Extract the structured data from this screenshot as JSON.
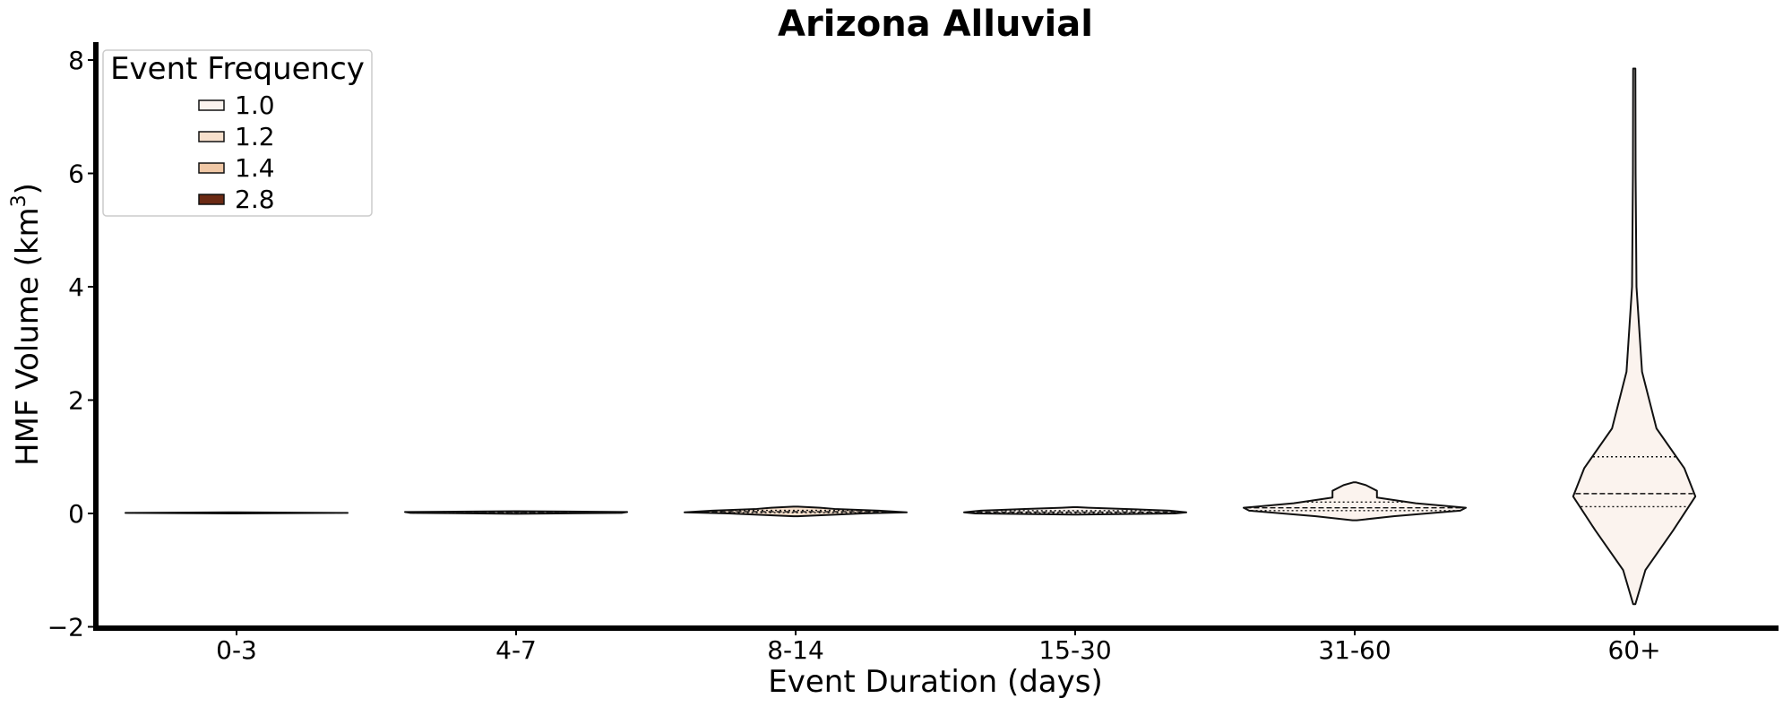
{
  "chart_data": {
    "type": "violin",
    "title": "Arizona Alluvial",
    "xlabel": "Event Duration (days)",
    "ylabel_main": "HMF Volume (km",
    "ylabel_sup": "3",
    "ylabel_close": ")",
    "ylim": [
      -2,
      8.3
    ],
    "yticks": [
      -2,
      0,
      2,
      4,
      6,
      8
    ],
    "ytick_labels": [
      "−2",
      "0",
      "2",
      "4",
      "6",
      "8"
    ],
    "categories": [
      "0-3",
      "4-7",
      "8-14",
      "15-30",
      "31-60",
      "60+"
    ],
    "legend": {
      "title": "Event Frequency",
      "placement": "upper-left",
      "entries": [
        {
          "label": "1.0",
          "color": "#fbf3ee"
        },
        {
          "label": "1.2",
          "color": "#f7e0cc"
        },
        {
          "label": "1.4",
          "color": "#f0c8a6"
        },
        {
          "label": "2.8",
          "color": "#6b2a14"
        }
      ]
    },
    "series": [
      {
        "category": "0-3",
        "hue": "1.0",
        "color": "#fbf3ee",
        "min": 0.0,
        "max": 0.02,
        "profile": [
          [
            0.0,
            0.01
          ],
          [
            0.01,
            1.0
          ],
          [
            0.02,
            0.01
          ]
        ],
        "quartiles": [
          0.005,
          0.01,
          0.015
        ]
      },
      {
        "category": "4-7",
        "hue": "1.0",
        "color": "#fbf3ee",
        "min": 0.0,
        "max": 0.04,
        "profile": [
          [
            -0.005,
            0.01
          ],
          [
            0.01,
            0.95
          ],
          [
            0.025,
            1.0
          ],
          [
            0.04,
            0.01
          ]
        ],
        "quartiles": [
          0.01,
          0.02,
          0.03
        ]
      },
      {
        "category": "8-14",
        "hue": "1.2",
        "color": "#f7e0cc",
        "min": -0.05,
        "max": 0.12,
        "profile": [
          [
            -0.05,
            0.02
          ],
          [
            0.0,
            0.6
          ],
          [
            0.02,
            1.0
          ],
          [
            0.05,
            0.75
          ],
          [
            0.08,
            0.35
          ],
          [
            0.1,
            0.22
          ],
          [
            0.12,
            0.02
          ]
        ],
        "quartiles": [
          0.015,
          0.03,
          0.055
        ]
      },
      {
        "category": "15-30",
        "hue": "1.0",
        "color": "#fbf3ee",
        "min": -0.02,
        "max": 0.11,
        "profile": [
          [
            -0.02,
            0.02
          ],
          [
            0.0,
            0.9
          ],
          [
            0.02,
            1.0
          ],
          [
            0.05,
            0.85
          ],
          [
            0.08,
            0.45
          ],
          [
            0.1,
            0.12
          ],
          [
            0.11,
            0.02
          ]
        ],
        "quartiles": [
          0.01,
          0.025,
          0.05
        ]
      },
      {
        "category": "31-60",
        "hue": "1.0",
        "color": "#fbf3ee",
        "min": -0.12,
        "max": 0.55,
        "profile": [
          [
            -0.12,
            0.02
          ],
          [
            -0.05,
            0.35
          ],
          [
            0.05,
            0.95
          ],
          [
            0.1,
            1.0
          ],
          [
            0.18,
            0.55
          ],
          [
            0.28,
            0.2
          ],
          [
            0.4,
            0.2
          ],
          [
            0.5,
            0.1
          ],
          [
            0.55,
            0.01
          ]
        ],
        "quartiles": [
          0.05,
          0.1,
          0.2
        ]
      },
      {
        "category": "60+",
        "hue": "1.0",
        "color": "#fbf3ee",
        "min": -1.6,
        "max": 7.85,
        "profile": [
          [
            -1.6,
            0.01
          ],
          [
            -1.0,
            0.1
          ],
          [
            -0.3,
            0.35
          ],
          [
            0.3,
            0.55
          ],
          [
            0.8,
            0.45
          ],
          [
            1.5,
            0.2
          ],
          [
            2.5,
            0.07
          ],
          [
            4.0,
            0.02
          ],
          [
            6.0,
            0.012
          ],
          [
            7.85,
            0.01
          ]
        ],
        "quartiles": [
          0.12,
          0.35,
          1.0
        ]
      }
    ]
  }
}
